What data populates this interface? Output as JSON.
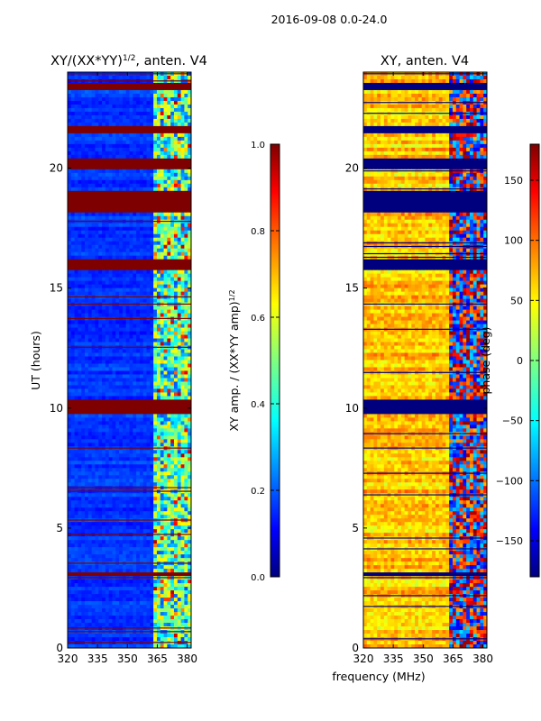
{
  "suptitle": "2016-09-08 0.0-24.0",
  "chart_data": [
    {
      "type": "heatmap",
      "title_main": "XY/(XX*YY)",
      "title_exp": "1/2",
      "title_tail": ", anten. V4",
      "xlabel": "",
      "ylabel": "UT (hours)",
      "xlim": [
        320,
        382
      ],
      "ylim": [
        0,
        24
      ],
      "xticks": [
        320,
        335,
        350,
        365,
        380
      ],
      "yticks": [
        0,
        5,
        10,
        15,
        20
      ],
      "colorbar": {
        "label_main": "XY amp. / (XX*YY amp)",
        "label_exp": "1/2",
        "min": 0.0,
        "max": 1.0,
        "ticks": [
          "0.0",
          "0.2",
          "0.4",
          "0.6",
          "0.8",
          "1.0"
        ],
        "colormap": "jet"
      },
      "flagged_time_ranges_hours": [
        [
          23.3,
          23.6
        ],
        [
          21.4,
          21.8
        ],
        [
          19.9,
          20.4
        ],
        [
          18.1,
          19.1
        ],
        [
          15.8,
          16.2
        ],
        [
          9.8,
          10.3
        ],
        [
          3.0,
          3.2
        ]
      ],
      "bright_band_mhz": [
        362,
        382
      ]
    },
    {
      "type": "heatmap",
      "title_main": "XY, anten. V4",
      "xlabel": "frequency (MHz)",
      "ylabel": "",
      "xlim": [
        320,
        382
      ],
      "ylim": [
        0,
        24
      ],
      "xticks": [
        320,
        335,
        350,
        365,
        380
      ],
      "yticks": [
        0,
        5,
        10,
        15,
        20
      ],
      "colorbar": {
        "label_main": "phase (deg)",
        "min": -180,
        "max": 180,
        "ticks": [
          "−150",
          "−100",
          "−50",
          "0",
          "50",
          "100",
          "150"
        ],
        "colormap": "jet"
      },
      "flagged_time_ranges_hours": [
        [
          23.3,
          23.6
        ],
        [
          21.4,
          21.8
        ],
        [
          19.9,
          20.4
        ],
        [
          18.1,
          19.1
        ],
        [
          15.8,
          16.2
        ],
        [
          9.8,
          10.3
        ],
        [
          3.0,
          3.2
        ]
      ],
      "bright_band_mhz": [
        362,
        382
      ]
    }
  ],
  "colors": {
    "jet_0": "#00007f",
    "jet_1": "#0000ff",
    "jet_2": "#00ffff",
    "jet_3": "#ffff00",
    "jet_4": "#ff0000",
    "jet_5": "#7f0000"
  }
}
